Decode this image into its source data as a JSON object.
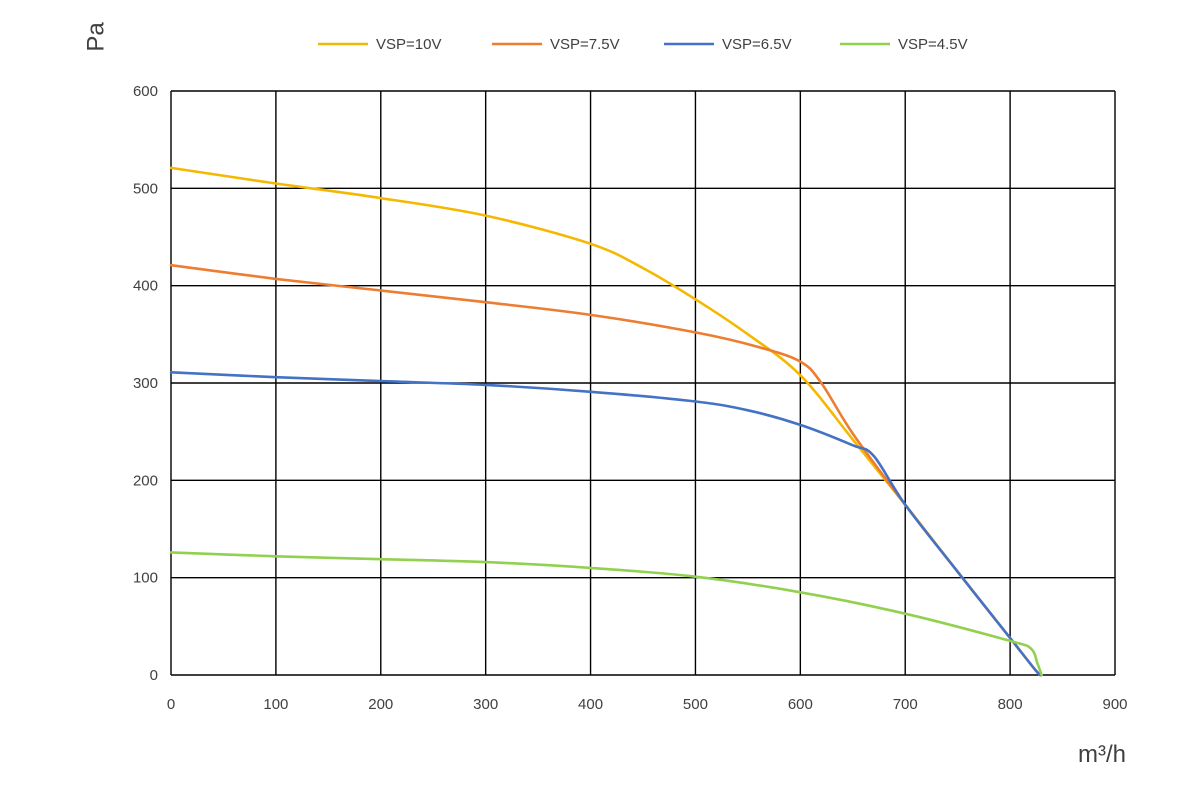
{
  "chart_data": {
    "type": "line",
    "title": "",
    "xlabel": "m³/h",
    "ylabel": "Pa",
    "xlim": [
      0,
      900
    ],
    "ylim": [
      0,
      600
    ],
    "x_ticks": [
      0,
      100,
      200,
      300,
      400,
      500,
      600,
      700,
      800,
      900
    ],
    "y_ticks": [
      0,
      100,
      200,
      300,
      400,
      500,
      600
    ],
    "grid": true,
    "legend_position": "top",
    "series": [
      {
        "name": "VSP=10V",
        "color": "#F5B800",
        "points": [
          [
            0,
            521
          ],
          [
            100,
            505
          ],
          [
            200,
            490
          ],
          [
            300,
            472
          ],
          [
            400,
            443
          ],
          [
            450,
            418
          ],
          [
            500,
            386
          ],
          [
            550,
            350
          ],
          [
            600,
            308
          ],
          [
            650,
            242
          ],
          [
            700,
            175
          ],
          [
            750,
            106
          ],
          [
            800,
            38
          ],
          [
            825,
            4
          ],
          [
            830,
            0
          ]
        ]
      },
      {
        "name": "VSP=7.5V",
        "color": "#ED7D31",
        "points": [
          [
            0,
            421
          ],
          [
            100,
            407
          ],
          [
            200,
            395
          ],
          [
            300,
            383
          ],
          [
            400,
            370
          ],
          [
            500,
            352
          ],
          [
            560,
            337
          ],
          [
            600,
            322
          ],
          [
            620,
            300
          ],
          [
            650,
            248
          ],
          [
            700,
            175
          ],
          [
            750,
            106
          ],
          [
            800,
            38
          ],
          [
            825,
            4
          ],
          [
            830,
            0
          ]
        ]
      },
      {
        "name": "VSP=6.5V",
        "color": "#4472C4",
        "points": [
          [
            0,
            311
          ],
          [
            100,
            306
          ],
          [
            200,
            302
          ],
          [
            300,
            298
          ],
          [
            400,
            291
          ],
          [
            500,
            281
          ],
          [
            550,
            272
          ],
          [
            600,
            257
          ],
          [
            650,
            236
          ],
          [
            670,
            225
          ],
          [
            700,
            175
          ],
          [
            750,
            106
          ],
          [
            800,
            38
          ],
          [
            825,
            4
          ],
          [
            830,
            0
          ]
        ]
      },
      {
        "name": "VSP=4.5V",
        "color": "#92D050",
        "points": [
          [
            0,
            126
          ],
          [
            100,
            122
          ],
          [
            200,
            119
          ],
          [
            300,
            116
          ],
          [
            400,
            110
          ],
          [
            500,
            101
          ],
          [
            600,
            85
          ],
          [
            700,
            63
          ],
          [
            800,
            35
          ],
          [
            820,
            27
          ],
          [
            826,
            12
          ],
          [
            830,
            0
          ]
        ]
      }
    ]
  }
}
